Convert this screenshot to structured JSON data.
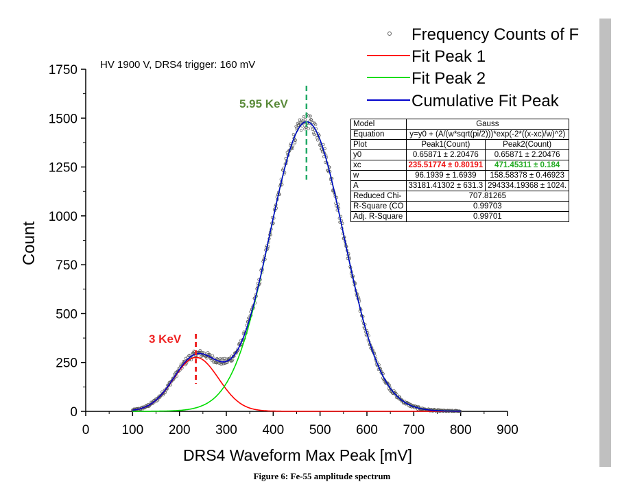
{
  "chart_data": {
    "type": "scatter",
    "title": "HV 1900 V, DRS4 trigger: 160 mV",
    "xlabel": "DRS4 Waveform Max Peak [mV]",
    "ylabel": "Count",
    "xlim": [
      0,
      900
    ],
    "ylim": [
      0,
      1750
    ],
    "x_ticks": [
      0,
      100,
      200,
      300,
      400,
      500,
      600,
      700,
      800,
      900
    ],
    "y_ticks": [
      0,
      250,
      500,
      750,
      1000,
      1250,
      1500,
      1750
    ],
    "legend_position": "top-right",
    "series": [
      {
        "name": "Frequency Counts of F",
        "kind": "scatter",
        "color": "#555555",
        "x_range": [
          100,
          800
        ]
      },
      {
        "name": "Fit Peak 1",
        "kind": "line",
        "color": "#ff0000",
        "y0": 0.65871,
        "xc": 235.51774,
        "w": 96.1939,
        "A": 33181.41302
      },
      {
        "name": "Fit Peak 2",
        "kind": "line",
        "color": "#00dd00",
        "y0": 0.65871,
        "xc": 471.45311,
        "w": 158.58378,
        "A": 294334.19368
      },
      {
        "name": "Cumulative Fit Peak",
        "kind": "line",
        "color": "#0000cc"
      }
    ],
    "annotations": [
      {
        "text": "3 KeV",
        "x": 235,
        "color": "#ee2222"
      },
      {
        "text": "5.95 KeV",
        "x": 471,
        "color": "#5a8a3a"
      }
    ]
  },
  "fit_table": {
    "rows": [
      [
        "Model",
        "Gauss"
      ],
      [
        "Equation",
        "y=y0 + (A/(w*sqrt(pi/2)))*exp(-2*((x-xc)/w)^2)"
      ],
      [
        "Plot",
        "Peak1(Count)",
        "Peak2(Count)"
      ],
      [
        "y0",
        "0.65871 ± 2.20476",
        "0.65871 ± 2.20476"
      ],
      [
        "xc",
        "235.51774 ± 0.80191",
        "471.45311 ± 0.184"
      ],
      [
        "w",
        "96.1939 ± 1.6939",
        "158.58378 ± 0.46923"
      ],
      [
        "A",
        "33181.41302 ± 631.3",
        "294334.19368 ± 1024."
      ],
      [
        "Reduced Chi-",
        "707.81265"
      ],
      [
        "R-Square (CO",
        "0.99703"
      ],
      [
        "Adj. R-Square",
        "0.99701"
      ]
    ]
  },
  "caption": "Figure 6: Fe-55 amplitude spectrum"
}
